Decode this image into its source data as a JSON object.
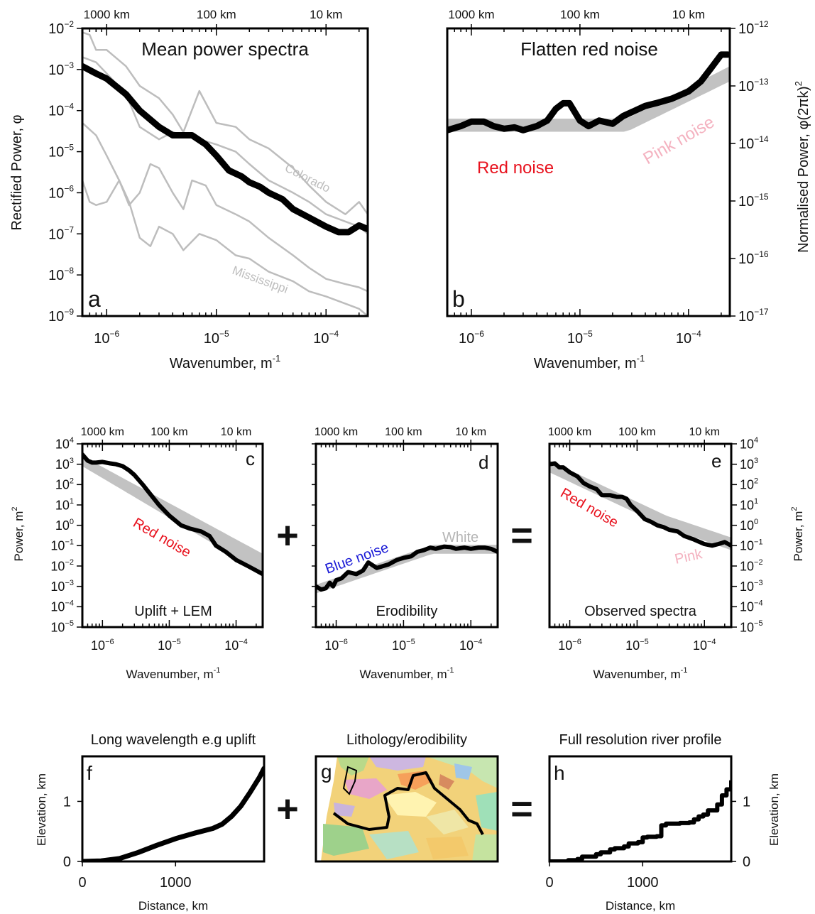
{
  "chart_data": [
    {
      "panel": "a",
      "type": "line",
      "title": "Mean power spectra",
      "xlabel": "Wavenumber, m",
      "xlabel_sup": "-1",
      "ylabel": "Rectified Power, φ",
      "xscale": "log",
      "yscale": "log",
      "xlim": [
        6e-07,
        0.00024
      ],
      "ylim": [
        1e-09,
        0.01
      ],
      "top_axis": [
        "1000 km",
        "100 km",
        "10 km"
      ],
      "x_tick_labels": [
        "10",
        "10",
        "10"
      ],
      "x_tick_exps": [
        "−6",
        "−5",
        "−4"
      ],
      "y_tick_labels": [
        "10",
        "10",
        "10",
        "10",
        "10",
        "10",
        "10",
        "10"
      ],
      "y_tick_exps": [
        "−2",
        "−3",
        "−4",
        "−5",
        "−6",
        "−7",
        "−8",
        "−9"
      ],
      "annotations": [
        "Colorado",
        "Mississippi"
      ],
      "colors": {
        "mean": "#000000",
        "rivers": "#bdbdbd"
      },
      "series": [
        {
          "role": "mean",
          "x": [
            6e-07,
            8e-07,
            1e-06,
            1.5e-06,
            2e-06,
            3e-06,
            4e-06,
            5e-06,
            6e-06,
            8e-06,
            1e-05,
            1.3e-05,
            1.7e-05,
            2e-05,
            2.5e-05,
            3e-05,
            4e-05,
            5e-05,
            7e-05,
            0.0001,
            0.00013,
            0.00016,
            0.0002,
            0.00024
          ],
          "y": [
            0.0012,
            0.0008,
            0.0006,
            0.00025,
            0.0001,
            4e-05,
            2.5e-05,
            2.5e-05,
            2.5e-05,
            1.5e-05,
            8e-06,
            3.5e-06,
            2.5e-06,
            1.8e-06,
            1.4e-06,
            1e-06,
            7e-07,
            4e-07,
            2.5e-07,
            1.5e-07,
            1.1e-07,
            1.1e-07,
            1.6e-07,
            1.3e-07
          ]
        },
        {
          "role": "river",
          "x": [
            6e-07,
            7e-07,
            8e-07,
            1e-06,
            1.5e-06,
            2e-06,
            3e-06,
            4e-06,
            5e-06,
            7e-06,
            1e-05,
            1.5e-05,
            2e-05,
            3e-05,
            5e-05,
            7e-05,
            0.0001,
            0.00015,
            0.0002,
            0.00024
          ],
          "y": [
            0.008,
            0.007,
            0.003,
            0.003,
            0.0012,
            0.0004,
            0.0002,
            8e-05,
            3e-05,
            0.0003,
            5e-05,
            4e-05,
            2e-05,
            1.2e-05,
            4e-06,
            1.5e-06,
            6e-07,
            3e-07,
            6e-07,
            3e-07
          ]
        },
        {
          "role": "river",
          "x": [
            6e-07,
            8e-07,
            1e-06,
            1.5e-06,
            2e-06,
            3e-06,
            4e-06,
            5e-06,
            7e-06,
            1e-05,
            1.5e-05,
            2e-05,
            3e-05,
            5e-05,
            7e-05,
            0.0001,
            0.00015,
            0.0002,
            0.00024
          ],
          "y": [
            0.002,
            0.0015,
            0.0008,
            0.00025,
            4e-05,
            2e-05,
            3e-05,
            2.5e-05,
            2e-05,
            1.5e-05,
            1e-05,
            5e-06,
            2e-06,
            1e-06,
            6e-07,
            3e-07,
            2e-07,
            1.5e-07,
            1e-07
          ]
        },
        {
          "role": "river",
          "x": [
            6e-07,
            8e-07,
            1e-06,
            1.3e-06,
            1.6e-06,
            2e-06,
            2.5e-06,
            3e-06,
            4e-06,
            5e-06,
            6e-06,
            8e-06,
            1e-05,
            1.5e-05,
            2e-05,
            3e-05,
            5e-05,
            7e-05,
            0.0001,
            0.00015,
            0.0002,
            0.00024
          ],
          "y": [
            5e-05,
            2.5e-05,
            8e-06,
            2e-06,
            5e-07,
            1e-06,
            5e-06,
            4e-06,
            1e-06,
            4e-07,
            2e-06,
            1.5e-06,
            5e-07,
            3e-07,
            2e-07,
            8e-08,
            3e-08,
            1.5e-08,
            8e-09,
            6e-09,
            5e-09,
            4e-09
          ]
        },
        {
          "role": "river",
          "x": [
            6e-07,
            7e-07,
            8e-07,
            1e-06,
            1.3e-06,
            1.6e-06,
            2e-06,
            2.5e-06,
            3e-06,
            4e-06,
            5e-06,
            7e-06,
            1e-05,
            1.5e-05,
            2e-05,
            3e-05,
            5e-05,
            7e-05,
            0.0001,
            0.00015,
            0.0002,
            0.00024
          ],
          "y": [
            2e-06,
            6e-07,
            5e-07,
            6e-07,
            2e-06,
            6e-07,
            8e-08,
            5e-08,
            1.5e-07,
            1e-07,
            4e-08,
            1e-07,
            7e-08,
            3e-08,
            2.5e-08,
            1.2e-08,
            7e-09,
            4e-09,
            3e-09,
            2e-09,
            1.5e-09,
            1e-09
          ]
        }
      ]
    },
    {
      "panel": "b",
      "type": "line",
      "title": "Flatten red noise",
      "xlabel": "Wavenumber, m",
      "xlabel_sup": "-1",
      "ylabel": "Normalised Power, φ(2πk)",
      "ylabel_sup": "2",
      "xscale": "log",
      "yscale": "log",
      "xlim": [
        6e-07,
        0.00024
      ],
      "ylim": [
        1e-17,
        1e-12
      ],
      "top_axis": [
        "1000 km",
        "100 km",
        "10 km"
      ],
      "x_tick_labels": [
        "10",
        "10",
        "10"
      ],
      "x_tick_exps": [
        "−6",
        "−5",
        "−4"
      ],
      "y_tick_labels": [
        "10",
        "10",
        "10",
        "10",
        "10",
        "10"
      ],
      "y_tick_exps": [
        "−12",
        "−13",
        "−14",
        "−15",
        "−16",
        "−17"
      ],
      "annotations": [
        {
          "text": "Red noise",
          "color": "#e8121e"
        },
        {
          "text": "Pink noise",
          "color": "#f4b2c0"
        }
      ],
      "series": [
        {
          "role": "observed",
          "x": [
            6e-07,
            8e-07,
            1e-06,
            1.3e-06,
            1.6e-06,
            2e-06,
            2.5e-06,
            3e-06,
            4e-06,
            5e-06,
            6e-06,
            7e-06,
            8e-06,
            1e-05,
            1.2e-05,
            1.5e-05,
            2e-05,
            2.5e-05,
            3e-05,
            4e-05,
            5e-05,
            7e-05,
            0.0001,
            0.00013,
            0.00016,
            0.0002,
            0.00023
          ],
          "y": [
            1.7e-14,
            2e-14,
            2.4e-14,
            2.4e-14,
            2e-14,
            1.8e-14,
            1.9e-14,
            1.7e-14,
            2e-14,
            2.5e-14,
            4e-14,
            5e-14,
            5e-14,
            2.5e-14,
            2e-14,
            2.5e-14,
            2.2e-14,
            3e-14,
            3.5e-14,
            4.5e-14,
            5e-14,
            6e-14,
            8e-14,
            1.2e-13,
            2e-13,
            3.5e-13,
            3.5e-13
          ]
        }
      ],
      "band": {
        "x": [
          6e-07,
          2.7e-05,
          0.00024
        ],
        "low": [
          1.6e-14,
          1.6e-14,
          1.2e-13
        ],
        "high": [
          2.7e-14,
          2.7e-14,
          2.2e-13
        ]
      }
    },
    {
      "panel": "c",
      "type": "line",
      "title": "Uplift + LEM",
      "xlabel": "Wavenumber, m",
      "xlabel_sup": "-1",
      "ylabel": "Power, m",
      "ylabel_sup": "2",
      "xscale": "log",
      "yscale": "log",
      "xlim": [
        5e-07,
        0.00025
      ],
      "ylim": [
        1e-05,
        10000.0
      ],
      "top_axis": [
        "1000 km",
        "100 km",
        "10 km"
      ],
      "x_tick_labels": [
        "10",
        "10",
        "10"
      ],
      "x_tick_exps": [
        "−6",
        "−5",
        "−4"
      ],
      "y_tick_labels": [
        "10",
        "10",
        "10",
        "10",
        "10",
        "10",
        "10",
        "10",
        "10",
        "10"
      ],
      "y_tick_exps": [
        "4",
        "3",
        "2",
        "1",
        "0",
        "−1",
        "−2",
        "−3",
        "−4",
        "−5"
      ],
      "annotations": [
        {
          "text": "Red noise",
          "color": "#e8121e"
        }
      ],
      "series": [
        {
          "role": "observed",
          "x": [
            5e-07,
            6e-07,
            7e-07,
            8e-07,
            1e-06,
            1.3e-06,
            1.6e-06,
            2e-06,
            2.5e-06,
            3e-06,
            4e-06,
            5e-06,
            7e-06,
            1e-05,
            1.5e-05,
            2e-05,
            3e-05,
            4e-05,
            5e-05,
            7e-05,
            0.0001,
            0.00015,
            0.0002,
            0.00025
          ],
          "y": [
            3000,
            1500,
            1200,
            1200,
            1300,
            1100,
            1000,
            800,
            500,
            300,
            100,
            40,
            10,
            3,
            1,
            0.7,
            0.5,
            0.3,
            0.1,
            0.05,
            0.02,
            0.01,
            0.006,
            0.004
          ]
        }
      ],
      "band": {
        "x": [
          5e-07,
          0.00025
        ],
        "low": [
          800,
          0.0045
        ],
        "high": [
          2500,
          0.04
        ]
      }
    },
    {
      "panel": "d",
      "type": "line",
      "title": "Erodibility",
      "xlabel": "Wavenumber, m",
      "xlabel_sup": "-1",
      "xscale": "log",
      "yscale": "log",
      "xlim": [
        5e-07,
        0.00025
      ],
      "ylim": [
        1e-05,
        10000.0
      ],
      "top_axis": [
        "1000 km",
        "100 km",
        "10 km"
      ],
      "x_tick_labels": [
        "10",
        "10",
        "10"
      ],
      "x_tick_exps": [
        "−6",
        "−5",
        "−4"
      ],
      "annotations": [
        {
          "text": "Blue noise",
          "color": "#1a1ad6"
        },
        {
          "text": "White",
          "color": "#b5b5b5"
        }
      ],
      "series": [
        {
          "role": "observed",
          "x": [
            5e-07,
            6e-07,
            7e-07,
            8e-07,
            9e-07,
            1e-06,
            1.2e-06,
            1.5e-06,
            2e-06,
            2.5e-06,
            3e-06,
            4e-06,
            5e-06,
            6e-06,
            8e-06,
            1e-05,
            1.3e-05,
            1.6e-05,
            2e-05,
            2.5e-05,
            3e-05,
            4e-05,
            5e-05,
            6e-05,
            8e-05,
            0.0001,
            0.00013,
            0.00016,
            0.0002,
            0.00025
          ],
          "y": [
            0.001,
            0.0007,
            0.0008,
            0.0015,
            0.001,
            0.002,
            0.0025,
            0.005,
            0.004,
            0.006,
            0.015,
            0.008,
            0.01,
            0.012,
            0.02,
            0.025,
            0.03,
            0.05,
            0.06,
            0.08,
            0.07,
            0.09,
            0.085,
            0.07,
            0.08,
            0.07,
            0.08,
            0.08,
            0.07,
            0.05
          ]
        }
      ],
      "band": {
        "x": [
          5e-07,
          2.7e-05,
          0.00025
        ],
        "low": [
          0.00045,
          0.04,
          0.04
        ],
        "high": [
          0.0012,
          0.11,
          0.11
        ]
      }
    },
    {
      "panel": "e",
      "type": "line",
      "title": "Observed spectra",
      "xlabel": "Wavenumber, m",
      "xlabel_sup": "-1",
      "ylabel": "Power, m",
      "ylabel_sup": "2",
      "xscale": "log",
      "yscale": "log",
      "xlim": [
        5e-07,
        0.00025
      ],
      "ylim": [
        1e-05,
        10000.0
      ],
      "top_axis": [
        "1000 km",
        "100 km",
        "10 km"
      ],
      "x_tick_labels": [
        "10",
        "10",
        "10"
      ],
      "x_tick_exps": [
        "−6",
        "−5",
        "−4"
      ],
      "y_tick_labels": [
        "10",
        "10",
        "10",
        "10",
        "10",
        "10",
        "10",
        "10",
        "10",
        "10"
      ],
      "y_tick_exps": [
        "4",
        "3",
        "2",
        "1",
        "0",
        "−1",
        "−2",
        "−3",
        "−4",
        "−5"
      ],
      "annotations": [
        {
          "text": "Red noise",
          "color": "#e8121e"
        },
        {
          "text": "Pink",
          "color": "#f4b2c0"
        }
      ],
      "series": [
        {
          "role": "observed",
          "x": [
            5e-07,
            6e-07,
            7e-07,
            8e-07,
            1e-06,
            1.3e-06,
            1.6e-06,
            2e-06,
            2.5e-06,
            3e-06,
            4e-06,
            5e-06,
            6e-06,
            7e-06,
            8e-06,
            1e-05,
            1.3e-05,
            1.6e-05,
            2e-05,
            2.5e-05,
            3e-05,
            4e-05,
            5e-05,
            7e-05,
            0.0001,
            0.00013,
            0.00016,
            0.0002,
            0.00025
          ],
          "y": [
            1000,
            1100,
            700,
            700,
            400,
            250,
            120,
            80,
            60,
            30,
            30,
            25,
            25,
            20,
            10,
            5,
            2,
            1.5,
            1,
            0.8,
            0.6,
            0.5,
            0.3,
            0.2,
            0.12,
            0.1,
            0.12,
            0.15,
            0.1
          ]
        }
      ],
      "band": {
        "x": [
          5e-07,
          2.7e-05,
          0.00025
        ],
        "low": [
          400,
          0.8,
          0.06
        ],
        "high": [
          1500,
          3,
          0.25
        ]
      }
    },
    {
      "panel": "f",
      "type": "line",
      "title": "Long wavelength e.g uplift",
      "xlabel": "Distance, km",
      "ylabel": "Elevation, km",
      "xlim": [
        0,
        1950
      ],
      "ylim": [
        0,
        1.75
      ],
      "x_tick_labels": [
        "0",
        "1000"
      ],
      "y_tick_labels": [
        "0",
        "1"
      ],
      "series": [
        {
          "x": [
            0,
            200,
            400,
            600,
            800,
            1000,
            1200,
            1400,
            1500,
            1600,
            1700,
            1800,
            1900,
            1950
          ],
          "y": [
            0,
            0.01,
            0.05,
            0.15,
            0.27,
            0.38,
            0.47,
            0.55,
            0.62,
            0.75,
            0.92,
            1.15,
            1.4,
            1.55
          ]
        }
      ]
    },
    {
      "panel": "h",
      "type": "line",
      "title": "Full resolution river profile",
      "xlabel": "Distance, km",
      "ylabel": "Elevation, km",
      "xlim": [
        0,
        1950
      ],
      "ylim": [
        0,
        1.75
      ],
      "x_tick_labels": [
        "0",
        "1000"
      ],
      "y_tick_labels": [
        "0",
        "1"
      ],
      "series": [
        {
          "x": [
            0,
            100,
            200,
            300,
            350,
            500,
            550,
            650,
            700,
            800,
            850,
            950,
            1000,
            1050,
            1100,
            1150,
            1200,
            1250,
            1300,
            1400,
            1500,
            1550,
            1600,
            1650,
            1700,
            1800,
            1850,
            1900,
            1950
          ],
          "y": [
            0,
            0,
            0.02,
            0.04,
            0.08,
            0.12,
            0.15,
            0.2,
            0.22,
            0.25,
            0.3,
            0.32,
            0.4,
            0.41,
            0.41,
            0.42,
            0.6,
            0.63,
            0.63,
            0.64,
            0.65,
            0.7,
            0.75,
            0.78,
            0.85,
            0.95,
            1.1,
            1.2,
            1.35
          ]
        }
      ]
    }
  ],
  "operators": {
    "plus": "+",
    "equals": "="
  },
  "panel_letters": {
    "a": "a",
    "b": "b",
    "c": "c",
    "d": "d",
    "e": "e",
    "f": "f",
    "g": "g",
    "h": "h"
  },
  "map": {
    "title": "Lithology/erodibility"
  }
}
